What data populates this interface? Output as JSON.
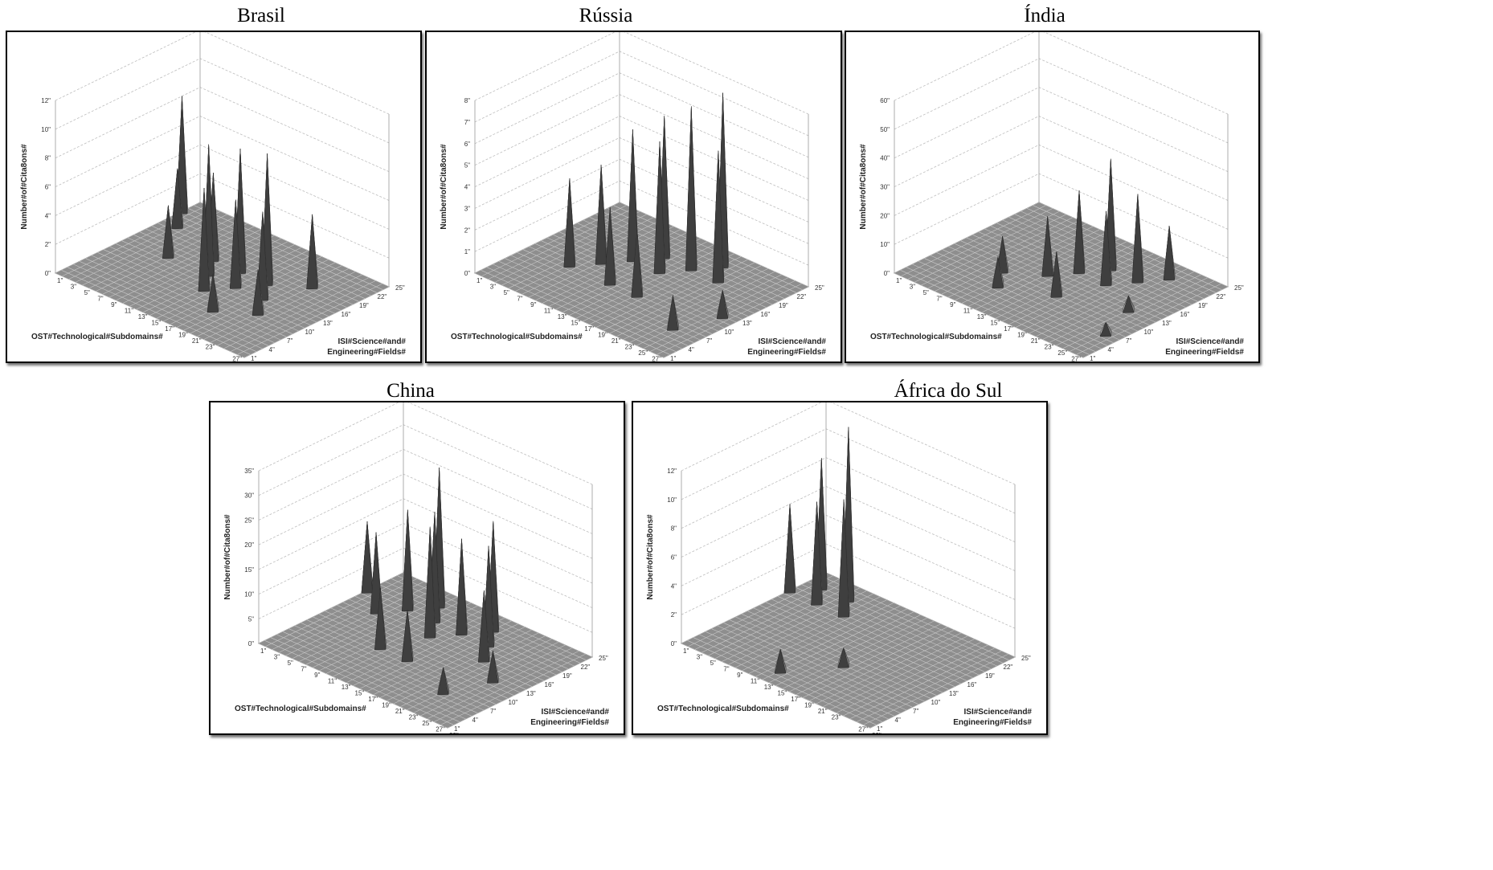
{
  "chart_data": [
    {
      "type": "surface3d",
      "title": "Brasil",
      "zlabel": "Number#of#Cita8ons#",
      "xlabel": "OST#Technological#Subdomains#",
      "ylabel_lines": [
        "ISI#Science#and#",
        "Engineering#Fields#"
      ],
      "x_ticks": [
        "1",
        "3",
        "5",
        "7",
        "9",
        "11",
        "13",
        "15",
        "17",
        "19",
        "21",
        "23",
        "27",
        "29"
      ],
      "y_ticks": [
        "1",
        "4",
        "7",
        "10",
        "13",
        "16",
        "19",
        "22",
        "25"
      ],
      "z_ticks": [
        "0",
        "2",
        "4",
        "6",
        "8",
        "10",
        "12"
      ],
      "zlim": [
        0,
        12
      ],
      "peaks": [
        {
          "x": 1,
          "y": 22,
          "z": 8
        },
        {
          "x": 3,
          "y": 19,
          "z": 4
        },
        {
          "x": 7,
          "y": 13,
          "z": 3.5
        },
        {
          "x": 11,
          "y": 16,
          "z": 6
        },
        {
          "x": 13,
          "y": 13,
          "z": 9
        },
        {
          "x": 15,
          "y": 10,
          "z": 7
        },
        {
          "x": 15,
          "y": 16,
          "z": 8.5
        },
        {
          "x": 17,
          "y": 13,
          "z": 6
        },
        {
          "x": 19,
          "y": 16,
          "z": 9
        },
        {
          "x": 21,
          "y": 13,
          "z": 6
        },
        {
          "x": 23,
          "y": 19,
          "z": 5
        },
        {
          "x": 23,
          "y": 10,
          "z": 3
        },
        {
          "x": 19,
          "y": 7,
          "z": 2.5
        }
      ]
    },
    {
      "type": "surface3d",
      "title": "Rússia",
      "zlabel": "Number#of#Cita8ons#",
      "xlabel": "OST#Technological#Subdomains#",
      "ylabel_lines": [
        "ISI#Science#and#",
        "Engineering#Fields#"
      ],
      "x_ticks": [
        "1",
        "3",
        "5",
        "7",
        "9",
        "11",
        "13",
        "15",
        "17",
        "19",
        "21",
        "23",
        "25",
        "27",
        "29"
      ],
      "y_ticks": [
        "1",
        "4",
        "7",
        "10",
        "13",
        "16",
        "19",
        "22",
        "25"
      ],
      "z_ticks": [
        "0",
        "1",
        "2",
        "3",
        "4",
        "5",
        "6",
        "7",
        "8"
      ],
      "zlim": [
        0,
        8
      ],
      "peaks": [
        {
          "x": 7,
          "y": 10,
          "z": 4
        },
        {
          "x": 9,
          "y": 13,
          "z": 4.5
        },
        {
          "x": 11,
          "y": 16,
          "z": 6
        },
        {
          "x": 13,
          "y": 19,
          "z": 6.5
        },
        {
          "x": 15,
          "y": 16,
          "z": 6
        },
        {
          "x": 17,
          "y": 19,
          "z": 7.5
        },
        {
          "x": 19,
          "y": 22,
          "z": 8
        },
        {
          "x": 21,
          "y": 19,
          "z": 6
        },
        {
          "x": 13,
          "y": 10,
          "z": 3.5
        },
        {
          "x": 17,
          "y": 10,
          "z": 3
        },
        {
          "x": 25,
          "y": 7,
          "z": 1.5
        },
        {
          "x": 27,
          "y": 13,
          "z": 1.2
        }
      ]
    },
    {
      "type": "surface3d",
      "title": "Índia",
      "zlabel": "Number#of#Cita8ons#",
      "xlabel": "OST#Technological#Subdomains#",
      "ylabel_lines": [
        "ISI#Science#and#",
        "Engineering#Fields#"
      ],
      "x_ticks": [
        "1",
        "3",
        "5",
        "7",
        "9",
        "11",
        "13",
        "15",
        "17",
        "19",
        "21",
        "23",
        "25",
        "27",
        "29"
      ],
      "y_ticks": [
        "1",
        "4",
        "7",
        "10",
        "13",
        "16",
        "19",
        "22",
        "25"
      ],
      "z_ticks": [
        "0",
        "10",
        "20",
        "30",
        "40",
        "50",
        "60"
      ],
      "zlim": [
        0,
        60
      ],
      "peaks": [
        {
          "x": 9,
          "y": 10,
          "z": 12
        },
        {
          "x": 13,
          "y": 13,
          "z": 20
        },
        {
          "x": 15,
          "y": 16,
          "z": 28
        },
        {
          "x": 17,
          "y": 19,
          "z": 38
        },
        {
          "x": 19,
          "y": 16,
          "z": 25
        },
        {
          "x": 21,
          "y": 19,
          "z": 30
        },
        {
          "x": 23,
          "y": 22,
          "z": 18
        },
        {
          "x": 11,
          "y": 7,
          "z": 10
        },
        {
          "x": 17,
          "y": 10,
          "z": 15
        },
        {
          "x": 25,
          "y": 13,
          "z": 5
        },
        {
          "x": 27,
          "y": 7,
          "z": 4
        }
      ]
    },
    {
      "type": "surface3d",
      "title": "China",
      "zlabel": "Number#of#Cita8ons#",
      "xlabel": "OST#Technological#Subdomains#",
      "ylabel_lines": [
        "ISI#Science#and#",
        "Engineering#Fields#"
      ],
      "x_ticks": [
        "1",
        "3",
        "5",
        "7",
        "9",
        "11",
        "13",
        "15",
        "17",
        "19",
        "21",
        "23",
        "25",
        "27",
        "29"
      ],
      "y_ticks": [
        "1",
        "4",
        "7",
        "10",
        "13",
        "16",
        "19",
        "22",
        "25"
      ],
      "z_ticks": [
        "0",
        "5",
        "10",
        "15",
        "20",
        "25",
        "30",
        "35"
      ],
      "zlim": [
        0,
        35
      ],
      "peaks": [
        {
          "x": 1,
          "y": 19,
          "z": 14
        },
        {
          "x": 5,
          "y": 16,
          "z": 16
        },
        {
          "x": 7,
          "y": 19,
          "z": 20
        },
        {
          "x": 9,
          "y": 22,
          "z": 28
        },
        {
          "x": 11,
          "y": 19,
          "z": 22
        },
        {
          "x": 13,
          "y": 16,
          "z": 22
        },
        {
          "x": 15,
          "y": 19,
          "z": 19
        },
        {
          "x": 17,
          "y": 22,
          "z": 22
        },
        {
          "x": 19,
          "y": 19,
          "z": 20
        },
        {
          "x": 21,
          "y": 16,
          "z": 14
        },
        {
          "x": 11,
          "y": 10,
          "z": 12
        },
        {
          "x": 15,
          "y": 10,
          "z": 10
        },
        {
          "x": 25,
          "y": 13,
          "z": 6
        },
        {
          "x": 23,
          "y": 7,
          "z": 5
        }
      ]
    },
    {
      "type": "surface3d",
      "title": "África do Sul",
      "zlabel": "Number#of#Cita8ons#",
      "xlabel": "OST#Technological#Subdomains#",
      "ylabel_lines": [
        "ISI#Science#and#",
        "Engineering#Fields#"
      ],
      "x_ticks": [
        "1",
        "3",
        "5",
        "7",
        "9",
        "11",
        "13",
        "15",
        "17",
        "19",
        "21",
        "23",
        "27",
        "29"
      ],
      "y_ticks": [
        "1",
        "4",
        "7",
        "10",
        "13",
        "16",
        "19",
        "22",
        "25"
      ],
      "z_ticks": [
        "0",
        "2",
        "4",
        "6",
        "8",
        "10",
        "12"
      ],
      "zlim": [
        0,
        12
      ],
      "peaks": [
        {
          "x": 1,
          "y": 19,
          "z": 6
        },
        {
          "x": 3,
          "y": 22,
          "z": 9
        },
        {
          "x": 5,
          "y": 19,
          "z": 7
        },
        {
          "x": 7,
          "y": 22,
          "z": 12
        },
        {
          "x": 9,
          "y": 19,
          "z": 8
        },
        {
          "x": 17,
          "y": 10,
          "z": 1.2
        },
        {
          "x": 13,
          "y": 4,
          "z": 1.5
        }
      ]
    }
  ]
}
